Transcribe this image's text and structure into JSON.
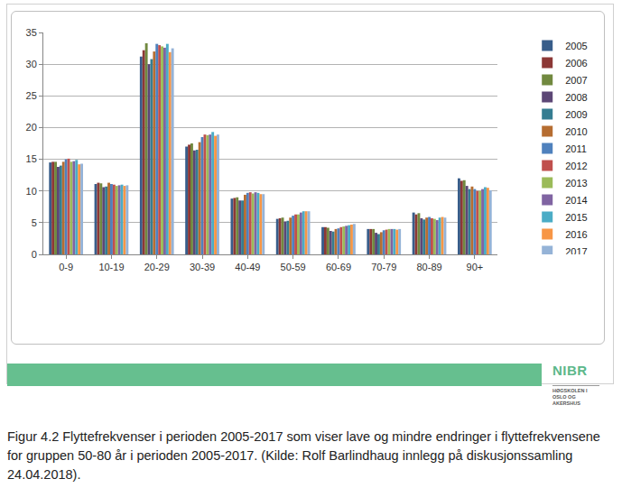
{
  "chart_data": {
    "type": "bar",
    "categories": [
      "0-9",
      "10-19",
      "20-29",
      "30-39",
      "40-49",
      "50-59",
      "60-69",
      "70-79",
      "80-89",
      "90+"
    ],
    "series": [
      {
        "name": "2005",
        "color": "#385d8a",
        "values": [
          14.5,
          11.1,
          31.2,
          17.0,
          8.8,
          5.6,
          4.3,
          4.0,
          6.6,
          12.0
        ]
      },
      {
        "name": "2006",
        "color": "#8c3836",
        "values": [
          14.6,
          11.3,
          32.2,
          17.3,
          8.9,
          5.7,
          4.3,
          4.0,
          6.3,
          11.6
        ]
      },
      {
        "name": "2007",
        "color": "#71893f",
        "values": [
          14.6,
          11.2,
          33.3,
          17.5,
          9.0,
          5.8,
          4.2,
          4.0,
          6.5,
          11.7
        ]
      },
      {
        "name": "2008",
        "color": "#5c4776",
        "values": [
          13.8,
          10.6,
          30.0,
          16.4,
          8.5,
          5.2,
          3.7,
          3.4,
          5.7,
          10.8
        ]
      },
      {
        "name": "2009",
        "color": "#357d91",
        "values": [
          14.0,
          10.7,
          30.8,
          16.5,
          8.5,
          5.3,
          3.6,
          3.2,
          5.5,
          10.3
        ]
      },
      {
        "name": "2010",
        "color": "#b66d31",
        "values": [
          14.6,
          11.3,
          32.0,
          17.7,
          9.4,
          5.8,
          4.0,
          3.5,
          5.8,
          10.7
        ]
      },
      {
        "name": "2011",
        "color": "#4f81bd",
        "values": [
          15.0,
          11.1,
          33.2,
          18.5,
          9.7,
          6.1,
          4.1,
          3.8,
          5.9,
          10.3
        ]
      },
      {
        "name": "2012",
        "color": "#c0504d",
        "values": [
          15.1,
          11.0,
          33.0,
          18.9,
          9.8,
          6.3,
          4.3,
          3.9,
          5.7,
          10.0
        ]
      },
      {
        "name": "2013",
        "color": "#9bbb59",
        "values": [
          14.6,
          10.8,
          32.8,
          18.8,
          9.6,
          6.3,
          4.4,
          4.0,
          5.6,
          10.0
        ]
      },
      {
        "name": "2014",
        "color": "#8064a2",
        "values": [
          14.7,
          10.9,
          32.6,
          18.9,
          9.8,
          6.6,
          4.5,
          4.0,
          5.4,
          10.3
        ]
      },
      {
        "name": "2015",
        "color": "#4bacc6",
        "values": [
          14.9,
          11.0,
          33.2,
          19.3,
          9.7,
          6.8,
          4.6,
          4.0,
          5.8,
          10.6
        ]
      },
      {
        "name": "2016",
        "color": "#f79646",
        "values": [
          14.2,
          10.8,
          31.9,
          18.7,
          9.5,
          6.8,
          4.7,
          3.9,
          5.9,
          10.5
        ]
      },
      {
        "name": "2017",
        "color": "#95b3d7",
        "values": [
          14.3,
          10.9,
          32.5,
          18.9,
          9.5,
          6.8,
          4.8,
          4.0,
          5.8,
          10.1
        ]
      }
    ],
    "ylim": [
      0,
      35
    ],
    "yticks": [
      0,
      5,
      10,
      15,
      20,
      25,
      30,
      35
    ],
    "grid": true,
    "legend": "right"
  },
  "logo": {
    "name": "NIBR",
    "institution": "HØGSKOLEN I OSLO OG AKERSHUS"
  },
  "caption": "Figur 4.2 Flyttefrekvenser i perioden 2005-2017 som viser lave og mindre endringer i flyttefrekvensene for gruppen 50-80 år i perioden 2005-2017. (Kilde: Rolf Barlindhaug innlegg på diskusjonssamling 24.04.2018)."
}
